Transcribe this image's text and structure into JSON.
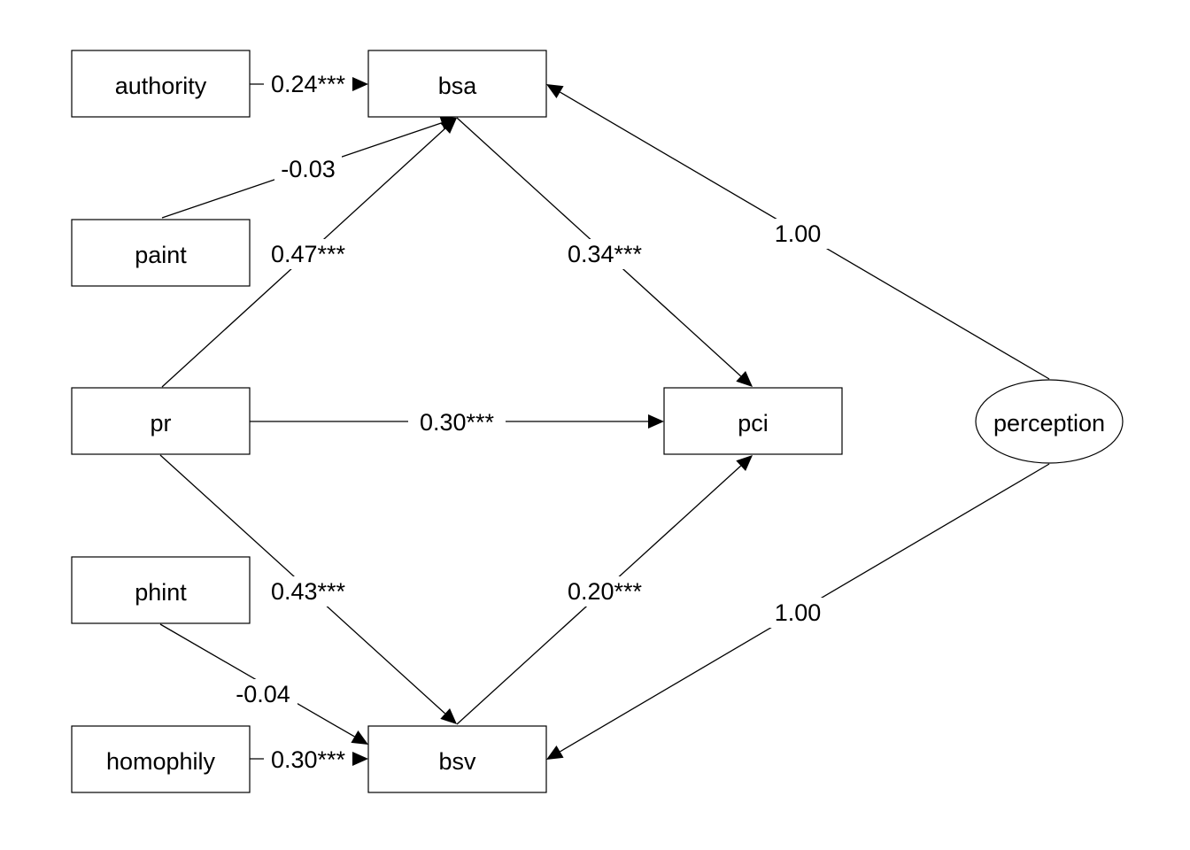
{
  "diagram": {
    "nodes": {
      "authority": {
        "label": "authority",
        "shape": "rect"
      },
      "paint": {
        "label": "paint",
        "shape": "rect"
      },
      "pr": {
        "label": "pr",
        "shape": "rect"
      },
      "phint": {
        "label": "phint",
        "shape": "rect"
      },
      "homophily": {
        "label": "homophily",
        "shape": "rect"
      },
      "bsa": {
        "label": "bsa",
        "shape": "rect"
      },
      "bsv": {
        "label": "bsv",
        "shape": "rect"
      },
      "pci": {
        "label": "pci",
        "shape": "rect"
      },
      "perception": {
        "label": "perception",
        "shape": "ellipse"
      }
    },
    "edges": [
      {
        "id": "authority-bsa",
        "from": "authority",
        "to": "bsa",
        "label": "0.24***"
      },
      {
        "id": "paint-bsa",
        "from": "paint",
        "to": "bsa",
        "label": "-0.03"
      },
      {
        "id": "pr-bsa",
        "from": "pr",
        "to": "bsa",
        "label": "0.47***"
      },
      {
        "id": "bsa-pci",
        "from": "bsa",
        "to": "pci",
        "label": "0.34***"
      },
      {
        "id": "perception-bsa",
        "from": "perception",
        "to": "bsa",
        "label": "1.00"
      },
      {
        "id": "pr-pci",
        "from": "pr",
        "to": "pci",
        "label": "0.30***"
      },
      {
        "id": "pr-bsv",
        "from": "pr",
        "to": "bsv",
        "label": "0.43***"
      },
      {
        "id": "bsv-pci",
        "from": "bsv",
        "to": "pci",
        "label": "0.20***"
      },
      {
        "id": "perception-bsv",
        "from": "perception",
        "to": "bsv",
        "label": "1.00"
      },
      {
        "id": "phint-bsv",
        "from": "phint",
        "to": "bsv",
        "label": "-0.04"
      },
      {
        "id": "homophily-bsv",
        "from": "homophily",
        "to": "bsv",
        "label": "0.30***"
      }
    ]
  }
}
